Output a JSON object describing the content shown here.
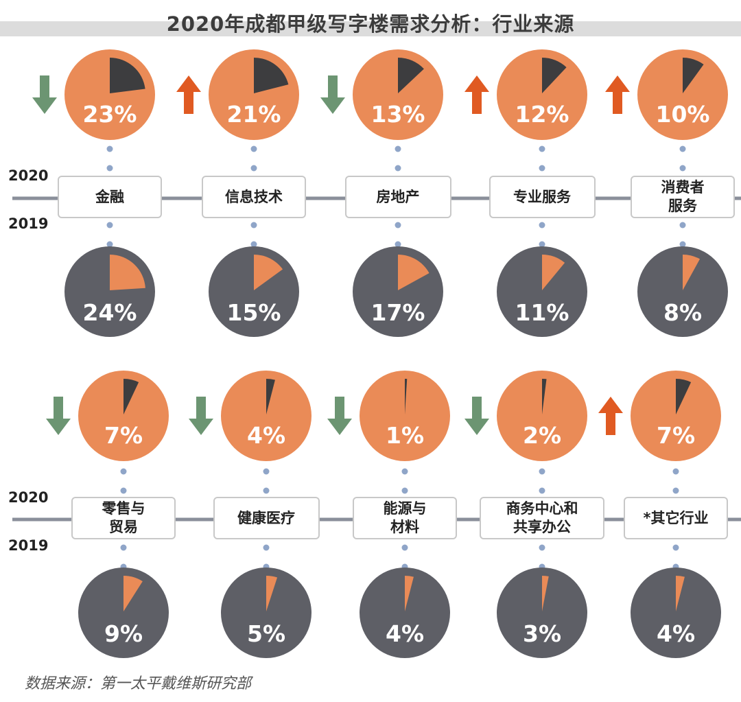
{
  "title": "2020年成都甲级写字楼需求分析：行业来源",
  "source": "数据来源：第一太平戴维斯研究部",
  "colors": {
    "orange": "#EA8B57",
    "dark": "#5E5F66",
    "slice_dark": "#3D3D3F",
    "up": "#E05A22",
    "down": "#6C9572",
    "line": "#8A8F9A",
    "dot": "#8FA5C8"
  },
  "rows": [
    {
      "year_top": "2020",
      "year_bottom": "2019"
    },
    {
      "year_top": "2020",
      "year_bottom": "2019"
    }
  ],
  "chart_data": {
    "type": "pie",
    "title": "2020年成都甲级写字楼需求分析：行业来源",
    "series": [
      {
        "name": "2020",
        "categories": [
          "金融",
          "信息技术",
          "房地产",
          "专业服务",
          "消费者服务",
          "零售与贸易",
          "健康医疗",
          "能源与材料",
          "商务中心和共享办公",
          "*其它行业"
        ],
        "values": [
          23,
          21,
          13,
          12,
          10,
          7,
          4,
          1,
          2,
          7
        ],
        "labels": [
          "23%",
          "21%",
          "13%",
          "12%",
          "10%",
          "7%",
          "4%",
          "1%",
          "2%",
          "7%"
        ],
        "trend": [
          "down",
          "up",
          "down",
          "up",
          "up",
          "down",
          "down",
          "down",
          "down",
          "up"
        ]
      },
      {
        "name": "2019",
        "categories": [
          "金融",
          "信息技术",
          "房地产",
          "专业服务",
          "消费者服务",
          "零售与贸易",
          "健康医疗",
          "能源与材料",
          "商务中心和共享办公",
          "*其它行业"
        ],
        "values": [
          24,
          15,
          17,
          11,
          8,
          9,
          5,
          4,
          3,
          4
        ],
        "labels": [
          "24%",
          "15%",
          "17%",
          "11%",
          "8%",
          "9%",
          "5%",
          "4%",
          "3%",
          "4%"
        ]
      }
    ],
    "categories_display": [
      "金融",
      "信息技术",
      "房地产",
      "专业服务",
      "消费者\n服务",
      "零售与\n贸易",
      "健康医疗",
      "能源与\n材料",
      "商务中心和\n共享办公",
      "*其它行业"
    ]
  }
}
